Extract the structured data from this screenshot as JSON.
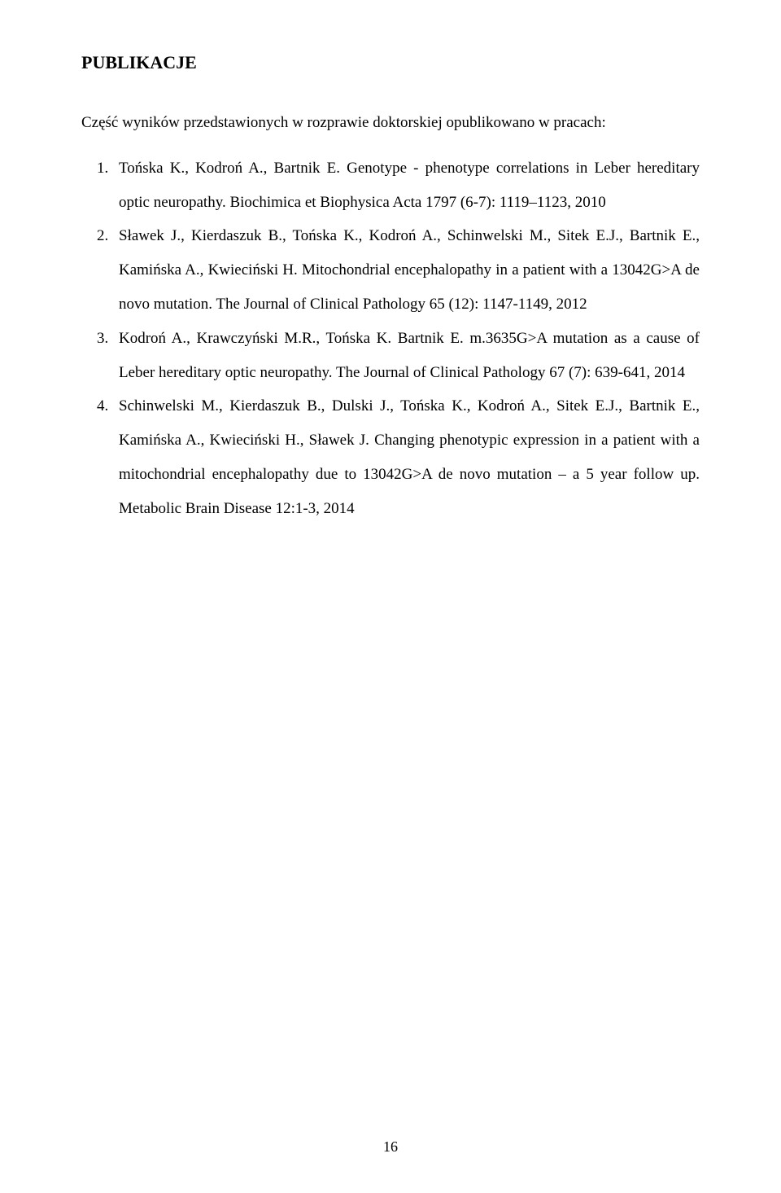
{
  "heading": "PUBLIKACJE",
  "intro": "Część wyników przedstawionych w rozprawie doktorskiej opublikowano w pracach:",
  "refs": [
    "Tońska K., Kodroń A., Bartnik E. Genotype - phenotype correlations in Leber hereditary optic neuropathy. Biochimica et Biophysica Acta 1797 (6-7): 1119–1123, 2010",
    "Sławek J., Kierdaszuk B., Tońska K., Kodroń A., Schinwelski M., Sitek E.J., Bartnik E., Kamińska A., Kwieciński H. Mitochondrial encephalopathy in a patient with a 13042G>A de novo mutation. The Journal of Clinical Pathology 65 (12): 1147-1149, 2012",
    "Kodroń A., Krawczyński M.R., Tońska K. Bartnik E. m.3635G>A mutation as a cause of Leber hereditary optic neuropathy. The Journal of Clinical Pathology 67 (7): 639-641, 2014",
    "Schinwelski M., Kierdaszuk B., Dulski J., Tońska K., Kodroń A., Sitek E.J., Bartnik E., Kamińska A., Kwieciński H., Sławek J. Changing phenotypic expression in a patient with a mitochondrial encephalopathy due to 13042G>A de novo mutation – a 5 year follow up. Metabolic Brain Disease 12:1-3, 2014"
  ],
  "pageNumber": "16"
}
